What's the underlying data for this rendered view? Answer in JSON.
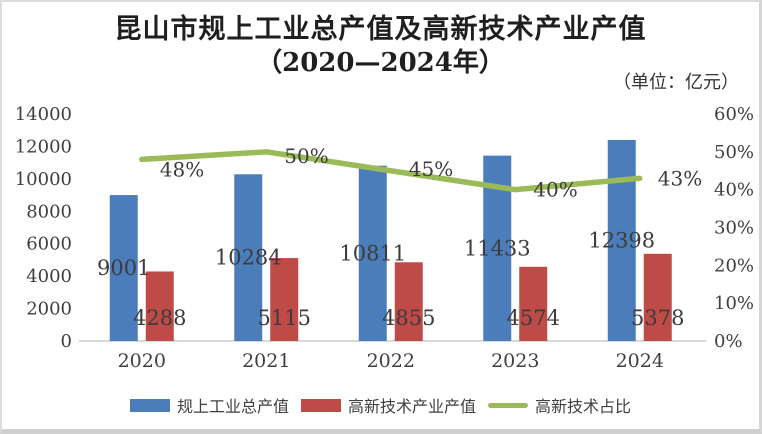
{
  "title": {
    "line1": "昆山市规上工业总产值及高新技术产业产值",
    "line2": "（2020—2024年）",
    "unit_note": "（单位：亿元）"
  },
  "colors": {
    "bar_primary": "#4C7DBB",
    "bar_secondary": "#BE4B48",
    "line": "#9BBB59",
    "text": "#404040",
    "axis_line": "#D9D9D9"
  },
  "chart_data": {
    "type": "bar+line",
    "title": "昆山市规上工业总产值及高新技术产业产值（2020—2024年）",
    "xlabel": "",
    "ylabel_left": "",
    "ylabel_right": "",
    "unit": "亿元",
    "grid": false,
    "legend_position": "bottom",
    "categories": [
      "2020",
      "2021",
      "2022",
      "2023",
      "2024"
    ],
    "series": [
      {
        "name": "规上工业总产值",
        "type": "bar",
        "axis": "left",
        "color": "#4C7DBB",
        "values": [
          9001,
          10284,
          10811,
          11433,
          12398
        ],
        "labels": [
          "9001",
          "10284",
          "10811",
          "11433",
          "12398"
        ]
      },
      {
        "name": "高新技术产业产值",
        "type": "bar",
        "axis": "left",
        "color": "#BE4B48",
        "values": [
          4288,
          5115,
          4855,
          4574,
          5378
        ],
        "labels": [
          "4288",
          "5115",
          "4855",
          "4574",
          "5378"
        ]
      },
      {
        "name": "高新技术占比",
        "type": "line",
        "axis": "right",
        "color": "#9BBB59",
        "values": [
          48,
          50,
          45,
          40,
          43
        ],
        "labels": [
          "48%",
          "50%",
          "45%",
          "40%",
          "43%"
        ]
      }
    ],
    "left_axis": {
      "min": 0,
      "max": 14000,
      "step": 2000,
      "ticks": [
        "0",
        "2000",
        "4000",
        "6000",
        "8000",
        "10000",
        "12000",
        "14000"
      ]
    },
    "right_axis": {
      "min": 0,
      "max": 60,
      "step": 10,
      "ticks": [
        "0%",
        "10%",
        "20%",
        "30%",
        "40%",
        "50%",
        "60%"
      ]
    }
  }
}
